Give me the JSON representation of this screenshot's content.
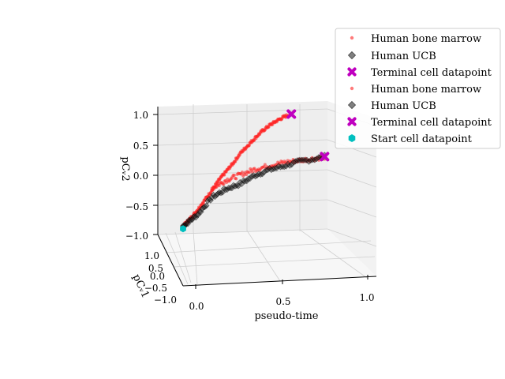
{
  "chart_data": {
    "type": "scatter",
    "projection": "3d",
    "axes": {
      "x": {
        "label": "pseudo-time",
        "ticks": [
          "0.0",
          "0.5",
          "1.0"
        ],
        "range": [
          0.0,
          1.0
        ]
      },
      "y": {
        "label": "pCᵥ1",
        "ticks": [
          "1.0",
          "0.5",
          "0.0",
          "−0.5",
          "−1.0"
        ],
        "range": [
          -1.0,
          1.0
        ]
      },
      "z": {
        "label": "pCᵥ2",
        "ticks": [
          "1.0",
          "0.5",
          "0.0",
          "−0.5",
          "−1.0"
        ],
        "range": [
          -1.0,
          1.0
        ]
      }
    },
    "grid": true,
    "legend_position": "top-right",
    "legend": [
      {
        "label": "Human bone marrow",
        "marker": "dot",
        "color": "#ff5a5a"
      },
      {
        "label": "Human UCB",
        "marker": "diamond",
        "color": "#808080"
      },
      {
        "label": "Terminal cell datapoint",
        "marker": "x",
        "color": "#bf00bf"
      },
      {
        "label": "Human bone marrow",
        "marker": "dot",
        "color": "#ff5a5a"
      },
      {
        "label": "Human UCB",
        "marker": "diamond",
        "color": "#808080"
      },
      {
        "label": "Terminal cell datapoint",
        "marker": "x",
        "color": "#bf00bf"
      },
      {
        "label": "Start cell datapoint",
        "marker": "hexagon",
        "color": "#00bfbf"
      }
    ],
    "series": [
      {
        "name": "Human bone marrow",
        "branches": [
          {
            "x": [
              0.0,
              0.05,
              0.1,
              0.15,
              0.2,
              0.25,
              0.3,
              0.35,
              0.4,
              0.45,
              0.5,
              0.55,
              0.6,
              0.65,
              0.7,
              0.75
            ],
            "z": [
              -0.95,
              -0.82,
              -0.67,
              -0.5,
              -0.33,
              -0.15,
              0.0,
              0.15,
              0.32,
              0.45,
              0.58,
              0.7,
              0.8,
              0.88,
              0.95,
              1.0
            ]
          },
          {
            "x": [
              0.2,
              0.3,
              0.4,
              0.5,
              0.6,
              0.7,
              0.8,
              0.9,
              0.98
            ],
            "z": [
              -0.3,
              -0.15,
              -0.05,
              0.05,
              0.12,
              0.18,
              0.22,
              0.26,
              0.29
            ]
          }
        ]
      },
      {
        "name": "Human UCB",
        "branches": [
          {
            "x": [
              0.0,
              0.05,
              0.1,
              0.15,
              0.2,
              0.3,
              0.4,
              0.5,
              0.6,
              0.7,
              0.8,
              0.9,
              0.98
            ],
            "z": [
              -0.95,
              -0.85,
              -0.75,
              -0.6,
              -0.45,
              -0.3,
              -0.2,
              -0.05,
              0.05,
              0.12,
              0.2,
              0.25,
              0.3
            ]
          }
        ]
      }
    ],
    "terminal_points": [
      {
        "x": 0.75,
        "z": 1.0
      },
      {
        "x": 0.98,
        "z": 0.3
      }
    ],
    "start_point": {
      "x": 0.0,
      "z": -0.97
    }
  }
}
